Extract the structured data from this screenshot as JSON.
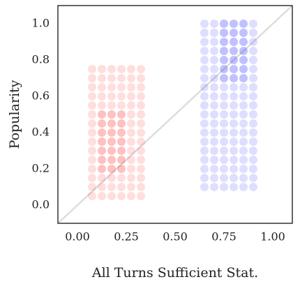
{
  "chart_data": {
    "type": "scatter",
    "xlabel": "All Turns Sufficient Stat.",
    "ylabel": "Popularity",
    "xlim": [
      -0.1,
      1.1
    ],
    "ylim": [
      -0.1,
      1.1
    ],
    "xticks": [
      {
        "value": 0,
        "label": "0.00"
      },
      {
        "value": 0.25,
        "label": "0.25"
      },
      {
        "value": 0.5,
        "label": "0.50"
      },
      {
        "value": 0.75,
        "label": "0.75"
      },
      {
        "value": 1,
        "label": "1.00"
      }
    ],
    "yticks": [
      {
        "value": 0,
        "label": "0.0"
      },
      {
        "value": 0.2,
        "label": "0.2"
      },
      {
        "value": 0.4,
        "label": "0.4"
      },
      {
        "value": 0.6,
        "label": "0.6"
      },
      {
        "value": 0.8,
        "label": "0.8"
      },
      {
        "value": 1,
        "label": "1.0"
      }
    ],
    "alpha": 0.13,
    "series": [
      {
        "color": "#ff0000",
        "x": [
          0.075,
          0.125,
          0.175,
          0.225,
          0.275,
          0.325,
          0.075,
          0.125,
          0.175,
          0.225,
          0.275,
          0.325,
          0.075,
          0.125,
          0.175,
          0.225,
          0.275,
          0.325,
          0.075,
          0.125,
          0.175,
          0.225,
          0.275,
          0.325,
          0.075,
          0.125,
          0.175,
          0.225,
          0.275,
          0.325,
          0.075,
          0.125,
          0.175,
          0.225,
          0.275,
          0.325,
          0.075,
          0.125,
          0.175,
          0.225,
          0.275,
          0.325,
          0.075,
          0.125,
          0.175,
          0.225,
          0.275,
          0.325,
          0.075,
          0.125,
          0.175,
          0.225,
          0.275,
          0.325,
          0.075,
          0.125,
          0.175,
          0.225,
          0.275,
          0.325,
          0.075,
          0.125,
          0.175,
          0.225,
          0.275,
          0.325,
          0.075,
          0.125,
          0.175,
          0.225,
          0.275,
          0.325,
          0.075,
          0.125,
          0.175,
          0.225,
          0.275,
          0.325,
          0.075,
          0.125,
          0.175,
          0.225,
          0.275,
          0.325,
          0.075,
          0.125,
          0.175,
          0.225,
          0.275,
          0.325,
          0.125,
          0.175,
          0.225,
          0.125,
          0.175,
          0.225,
          0.125,
          0.175,
          0.225,
          0.125,
          0.175,
          0.225,
          0.125,
          0.175,
          0.225,
          0.125,
          0.175,
          0.225,
          0.125,
          0.175,
          0.225
        ],
        "values": [
          0.05,
          0.05,
          0.05,
          0.05,
          0.05,
          0.05,
          0.1,
          0.1,
          0.1,
          0.1,
          0.1,
          0.1,
          0.15,
          0.15,
          0.15,
          0.15,
          0.15,
          0.15,
          0.2,
          0.2,
          0.2,
          0.2,
          0.2,
          0.2,
          0.25,
          0.25,
          0.25,
          0.25,
          0.25,
          0.25,
          0.3,
          0.3,
          0.3,
          0.3,
          0.3,
          0.3,
          0.35,
          0.35,
          0.35,
          0.35,
          0.35,
          0.35,
          0.4,
          0.4,
          0.4,
          0.4,
          0.4,
          0.4,
          0.45,
          0.45,
          0.45,
          0.45,
          0.45,
          0.45,
          0.5,
          0.5,
          0.5,
          0.5,
          0.5,
          0.5,
          0.55,
          0.55,
          0.55,
          0.55,
          0.55,
          0.55,
          0.6,
          0.6,
          0.6,
          0.6,
          0.6,
          0.6,
          0.65,
          0.65,
          0.65,
          0.65,
          0.65,
          0.65,
          0.7,
          0.7,
          0.7,
          0.7,
          0.7,
          0.7,
          0.75,
          0.75,
          0.75,
          0.75,
          0.75,
          0.75,
          0.2,
          0.2,
          0.2,
          0.25,
          0.25,
          0.25,
          0.3,
          0.3,
          0.3,
          0.35,
          0.35,
          0.35,
          0.4,
          0.4,
          0.4,
          0.45,
          0.45,
          0.45,
          0.5,
          0.5,
          0.5
        ]
      },
      {
        "color": "#0000ff",
        "x": [
          0.65,
          0.7,
          0.75,
          0.8,
          0.85,
          0.9,
          0.65,
          0.7,
          0.75,
          0.8,
          0.85,
          0.9,
          0.65,
          0.7,
          0.75,
          0.8,
          0.85,
          0.9,
          0.65,
          0.7,
          0.75,
          0.8,
          0.85,
          0.9,
          0.65,
          0.7,
          0.75,
          0.8,
          0.85,
          0.9,
          0.65,
          0.7,
          0.75,
          0.8,
          0.85,
          0.9,
          0.65,
          0.7,
          0.75,
          0.8,
          0.85,
          0.9,
          0.65,
          0.7,
          0.75,
          0.8,
          0.85,
          0.9,
          0.65,
          0.7,
          0.75,
          0.8,
          0.85,
          0.9,
          0.65,
          0.7,
          0.75,
          0.8,
          0.85,
          0.9,
          0.65,
          0.7,
          0.75,
          0.8,
          0.85,
          0.9,
          0.65,
          0.7,
          0.75,
          0.8,
          0.85,
          0.9,
          0.65,
          0.7,
          0.75,
          0.8,
          0.85,
          0.9,
          0.65,
          0.7,
          0.75,
          0.8,
          0.85,
          0.9,
          0.65,
          0.7,
          0.75,
          0.8,
          0.85,
          0.9,
          0.65,
          0.7,
          0.75,
          0.8,
          0.85,
          0.9,
          0.65,
          0.7,
          0.75,
          0.8,
          0.85,
          0.9,
          0.65,
          0.7,
          0.75,
          0.8,
          0.85,
          0.9,
          0.65,
          0.7,
          0.75,
          0.8,
          0.85,
          0.9,
          0.75,
          0.8,
          0.85,
          0.75,
          0.8,
          0.85,
          0.75,
          0.8,
          0.85,
          0.75,
          0.8,
          0.85,
          0.75,
          0.8,
          0.85,
          0.75,
          0.8,
          0.85,
          0.75,
          0.8,
          0.85
        ],
        "values": [
          0.1,
          0.1,
          0.1,
          0.1,
          0.1,
          0.1,
          0.15,
          0.15,
          0.15,
          0.15,
          0.15,
          0.15,
          0.2,
          0.2,
          0.2,
          0.2,
          0.2,
          0.2,
          0.25,
          0.25,
          0.25,
          0.25,
          0.25,
          0.25,
          0.3,
          0.3,
          0.3,
          0.3,
          0.3,
          0.3,
          0.35,
          0.35,
          0.35,
          0.35,
          0.35,
          0.35,
          0.4,
          0.4,
          0.4,
          0.4,
          0.4,
          0.4,
          0.45,
          0.45,
          0.45,
          0.45,
          0.45,
          0.45,
          0.5,
          0.5,
          0.5,
          0.5,
          0.5,
          0.5,
          0.55,
          0.55,
          0.55,
          0.55,
          0.55,
          0.55,
          0.6,
          0.6,
          0.6,
          0.6,
          0.6,
          0.6,
          0.65,
          0.65,
          0.65,
          0.65,
          0.65,
          0.65,
          0.7,
          0.7,
          0.7,
          0.7,
          0.7,
          0.7,
          0.75,
          0.75,
          0.75,
          0.75,
          0.75,
          0.75,
          0.8,
          0.8,
          0.8,
          0.8,
          0.8,
          0.8,
          0.85,
          0.85,
          0.85,
          0.85,
          0.85,
          0.85,
          0.9,
          0.9,
          0.9,
          0.9,
          0.9,
          0.9,
          0.95,
          0.95,
          0.95,
          0.95,
          0.95,
          0.95,
          1.0,
          1.0,
          1.0,
          1.0,
          1.0,
          1.0,
          0.7,
          0.7,
          0.7,
          0.75,
          0.75,
          0.75,
          0.8,
          0.8,
          0.8,
          0.85,
          0.85,
          0.85,
          0.9,
          0.9,
          0.9,
          0.95,
          0.95,
          0.95,
          1.0,
          1.0,
          1.0
        ]
      }
    ]
  }
}
